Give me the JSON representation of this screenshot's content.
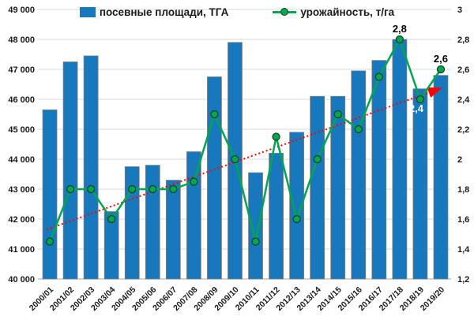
{
  "chart_data": {
    "type": "bar",
    "subtype": "combo-bar-line",
    "title": "",
    "categories": [
      "2000/01",
      "2001/02",
      "2002/03",
      "2003/04",
      "2004/05",
      "2005/06",
      "2006/07",
      "2007/08",
      "2008/09",
      "2009/10",
      "2010/11",
      "2011/12",
      "2012/13",
      "2013/14",
      "2014/15",
      "2015/16",
      "2016/17",
      "2017/18",
      "2018/19",
      "2019/20"
    ],
    "series": [
      {
        "name": "посевные площади, ТГА",
        "type": "bar",
        "axis": "left",
        "values": [
          45650,
          47250,
          47450,
          42250,
          43750,
          43800,
          43300,
          44250,
          46750,
          47900,
          43550,
          44200,
          44900,
          46100,
          46100,
          46950,
          47300,
          48000,
          46350,
          46800
        ]
      },
      {
        "name": "урожайность, т/га",
        "type": "line",
        "axis": "right",
        "values": [
          1.45,
          1.8,
          1.8,
          1.6,
          1.8,
          1.8,
          1.8,
          1.85,
          2.3,
          2.0,
          1.45,
          2.15,
          1.6,
          2.0,
          2.3,
          2.2,
          2.55,
          2.8,
          2.4,
          2.6
        ]
      }
    ],
    "left_axis": {
      "min": 40000,
      "max": 49000,
      "step": 1000,
      "tick_labels": [
        "49 000",
        "48 000",
        "47 000",
        "46 000",
        "45 000",
        "44 000",
        "43 000",
        "42 000",
        "41 000",
        "40 000"
      ]
    },
    "right_axis": {
      "min": 1.2,
      "max": 3.0,
      "step": 0.2,
      "tick_labels": [
        "3",
        "2,8",
        "2,6",
        "2,4",
        "2,2",
        "2",
        "1,8",
        "1,6",
        "1,4",
        "1,2"
      ]
    },
    "trendline": {
      "applies_to": "урожайность, т/га",
      "style": "dotted-arrow",
      "start_value": 1.53,
      "end_value": 2.47
    },
    "point_labels": [
      {
        "category": "2017/18",
        "index": 17,
        "text": "2,8",
        "color": "#000000",
        "position": "above"
      },
      {
        "category": "2018/19",
        "index": 18,
        "text": "2,4",
        "color": "#ffffff",
        "position": "below"
      },
      {
        "category": "2019/20",
        "index": 19,
        "text": "2,6",
        "color": "#000000",
        "position": "above"
      }
    ],
    "legend": {
      "position": "top",
      "items": [
        {
          "label": "посевные площади, ТГА",
          "swatch": "bar-square"
        },
        {
          "label": "урожайность, т/га",
          "swatch": "line-marker"
        }
      ]
    },
    "grid": true,
    "colors": {
      "bar": "#1878BE",
      "bar_border": "#7f7f7f",
      "line": "#00A650",
      "marker_fill": "#00A650",
      "marker_outline": "#153f24",
      "trend": "#FF0000",
      "gridline": "#D9D9D9",
      "axis_line": "#A6A6A6",
      "text": "#1a1a1a"
    }
  }
}
